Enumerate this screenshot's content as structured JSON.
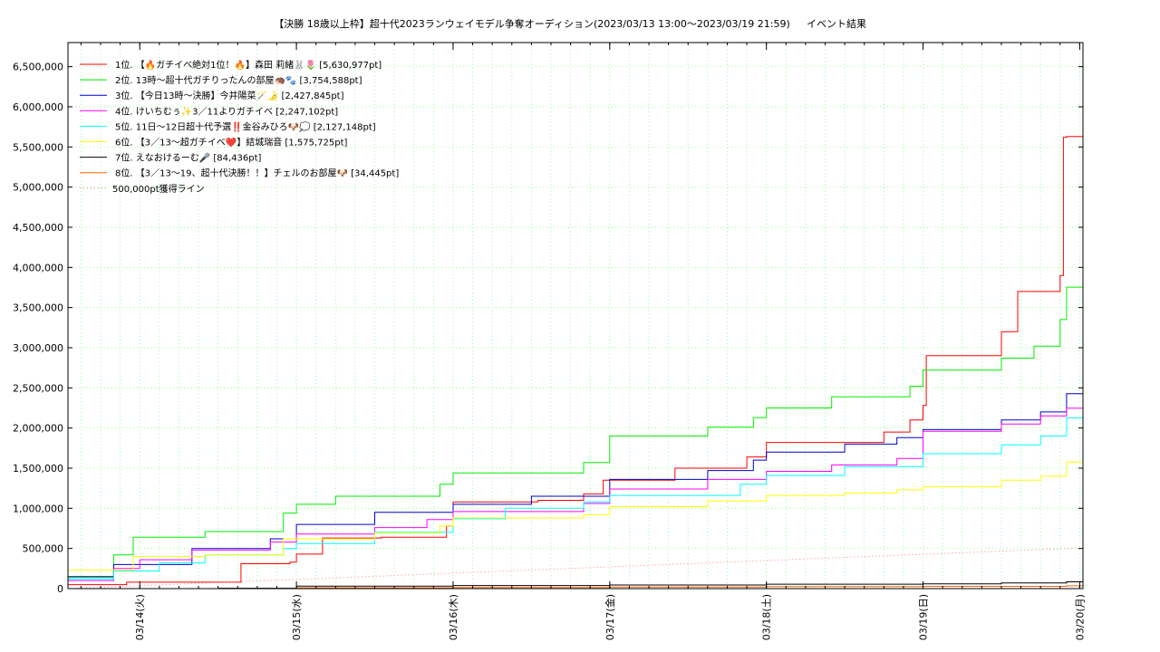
{
  "chart_data": {
    "type": "line",
    "title": "【決勝 18歳以上枠】超十代2023ランウェイモデル争奪オーディション(2023/03/13 13:00～2023/03/19 21:59)",
    "subtitle": "イベント結果",
    "xlabel": "",
    "ylabel": "",
    "x_range": [
      "2023-03-13 13:00",
      "2023-03-20 00:30"
    ],
    "ylim": [
      0,
      6800000
    ],
    "y_ticks": [
      0,
      500000,
      1000000,
      1500000,
      2000000,
      2500000,
      3000000,
      3500000,
      4000000,
      4500000,
      5000000,
      5500000,
      6000000,
      6500000
    ],
    "y_tick_labels": [
      "0",
      "500,000",
      "1,000,000",
      "1,500,000",
      "2,000,000",
      "2,500,000",
      "3,000,000",
      "3,500,000",
      "4,000,000",
      "4,500,000",
      "5,000,000",
      "5,500,000",
      "6,000,000",
      "6,500,000"
    ],
    "x_ticks": [
      "2023-03-14",
      "2023-03-15",
      "2023-03-16",
      "2023-03-17",
      "2023-03-18",
      "2023-03-19",
      "2023-03-20"
    ],
    "x_tick_labels": [
      "03/14(火)",
      "03/15(水)",
      "03/16(木)",
      "03/17(金)",
      "03/18(土)",
      "03/19(日)",
      "03/20(月)"
    ],
    "grid": true,
    "legend_position": "top-left",
    "series": [
      {
        "name": "1位. 【🔥ガチイベ絶対1位！🔥】森田 莉緒🐰🌷 [5,630,977pt]",
        "color": "#ff0000",
        "points": [
          [
            "2023-03-13 13:00",
            50000
          ],
          [
            "2023-03-13 22:00",
            80000
          ],
          [
            "2023-03-14 15:00",
            80000
          ],
          [
            "2023-03-14 15:30",
            310000
          ],
          [
            "2023-03-14 23:00",
            330000
          ],
          [
            "2023-03-15 00:00",
            430000
          ],
          [
            "2023-03-15 04:00",
            630000
          ],
          [
            "2023-03-15 10:00",
            630000
          ],
          [
            "2023-03-15 13:00",
            640000
          ],
          [
            "2023-03-15 23:00",
            780000
          ],
          [
            "2023-03-16 00:00",
            1080000
          ],
          [
            "2023-03-16 13:00",
            1100000
          ],
          [
            "2023-03-16 20:00",
            1180000
          ],
          [
            "2023-03-16 23:00",
            1350000
          ],
          [
            "2023-03-17 10:00",
            1500000
          ],
          [
            "2023-03-17 21:00",
            1640000
          ],
          [
            "2023-03-18 00:00",
            1820000
          ],
          [
            "2023-03-18 18:00",
            1950000
          ],
          [
            "2023-03-18 22:00",
            2100000
          ],
          [
            "2023-03-19 00:00",
            2280000
          ],
          [
            "2023-03-19 00:30",
            2900000
          ],
          [
            "2023-03-19 11:00",
            2900000
          ],
          [
            "2023-03-19 12:00",
            3200000
          ],
          [
            "2023-03-19 14:30",
            3700000
          ],
          [
            "2023-03-19 21:00",
            3900000
          ],
          [
            "2023-03-19 21:30",
            5620000
          ],
          [
            "2023-03-19 21:59",
            5630977
          ],
          [
            "2023-03-20 00:30",
            5630977
          ]
        ]
      },
      {
        "name": "2位. 13時～超十代ガチりったんの部屋🦔🐾 [3,754,588pt]",
        "color": "#00ee00",
        "points": [
          [
            "2023-03-13 13:00",
            140000
          ],
          [
            "2023-03-13 20:00",
            420000
          ],
          [
            "2023-03-13 23:00",
            640000
          ],
          [
            "2023-03-14 10:00",
            710000
          ],
          [
            "2023-03-14 22:00",
            940000
          ],
          [
            "2023-03-15 00:00",
            1050000
          ],
          [
            "2023-03-15 06:00",
            1150000
          ],
          [
            "2023-03-15 22:00",
            1300000
          ],
          [
            "2023-03-16 00:00",
            1440000
          ],
          [
            "2023-03-16 20:00",
            1570000
          ],
          [
            "2023-03-17 00:00",
            1900000
          ],
          [
            "2023-03-17 12:00",
            1900000
          ],
          [
            "2023-03-17 15:00",
            2010000
          ],
          [
            "2023-03-17 22:00",
            2130000
          ],
          [
            "2023-03-18 00:00",
            2250000
          ],
          [
            "2023-03-18 10:00",
            2390000
          ],
          [
            "2023-03-18 22:00",
            2520000
          ],
          [
            "2023-03-19 00:00",
            2720000
          ],
          [
            "2023-03-19 12:00",
            2870000
          ],
          [
            "2023-03-19 17:00",
            3020000
          ],
          [
            "2023-03-19 21:00",
            3350000
          ],
          [
            "2023-03-19 21:59",
            3754588
          ],
          [
            "2023-03-20 00:30",
            3754588
          ]
        ]
      },
      {
        "name": "3位. 【今日13時～決勝】今井陽菜🪄🌛 [2,427,845pt]",
        "color": "#0000cc",
        "points": [
          [
            "2023-03-13 13:00",
            150000
          ],
          [
            "2023-03-13 20:00",
            300000
          ],
          [
            "2023-03-14 08:00",
            500000
          ],
          [
            "2023-03-14 20:00",
            620000
          ],
          [
            "2023-03-15 00:00",
            800000
          ],
          [
            "2023-03-15 12:00",
            950000
          ],
          [
            "2023-03-16 00:00",
            1050000
          ],
          [
            "2023-03-16 12:00",
            1150000
          ],
          [
            "2023-03-17 00:00",
            1360000
          ],
          [
            "2023-03-17 15:00",
            1470000
          ],
          [
            "2023-03-17 22:00",
            1600000
          ],
          [
            "2023-03-18 00:00",
            1700000
          ],
          [
            "2023-03-18 12:00",
            1800000
          ],
          [
            "2023-03-18 20:00",
            1880000
          ],
          [
            "2023-03-19 00:00",
            1980000
          ],
          [
            "2023-03-19 12:00",
            2100000
          ],
          [
            "2023-03-19 18:00",
            2200000
          ],
          [
            "2023-03-19 21:59",
            2427845
          ],
          [
            "2023-03-20 00:30",
            2427845
          ]
        ]
      },
      {
        "name": "4位. けいちむぅ✨3／11よりガチイベ [2,247,102pt]",
        "color": "#ff00ff",
        "points": [
          [
            "2023-03-13 13:00",
            100000
          ],
          [
            "2023-03-13 20:00",
            250000
          ],
          [
            "2023-03-14 00:00",
            360000
          ],
          [
            "2023-03-14 08:00",
            480000
          ],
          [
            "2023-03-14 20:00",
            580000
          ],
          [
            "2023-03-15 00:00",
            680000
          ],
          [
            "2023-03-15 12:00",
            760000
          ],
          [
            "2023-03-15 20:00",
            860000
          ],
          [
            "2023-03-16 00:00",
            960000
          ],
          [
            "2023-03-16 20:00",
            1060000
          ],
          [
            "2023-03-17 00:00",
            1240000
          ],
          [
            "2023-03-17 15:00",
            1360000
          ],
          [
            "2023-03-18 00:00",
            1460000
          ],
          [
            "2023-03-18 10:00",
            1540000
          ],
          [
            "2023-03-18 20:00",
            1620000
          ],
          [
            "2023-03-19 00:00",
            1960000
          ],
          [
            "2023-03-19 12:00",
            2050000
          ],
          [
            "2023-03-19 18:00",
            2150000
          ],
          [
            "2023-03-19 21:59",
            2247102
          ],
          [
            "2023-03-20 00:30",
            2247102
          ]
        ]
      },
      {
        "name": "5位. 11日～12日超十代予選‼️金谷みひろ🐶💭 [2,127,148pt]",
        "color": "#00ffff",
        "points": [
          [
            "2023-03-13 13:00",
            120000
          ],
          [
            "2023-03-13 20:00",
            220000
          ],
          [
            "2023-03-14 03:00",
            320000
          ],
          [
            "2023-03-14 10:00",
            420000
          ],
          [
            "2023-03-14 22:00",
            500000
          ],
          [
            "2023-03-15 00:00",
            560000
          ],
          [
            "2023-03-15 12:00",
            700000
          ],
          [
            "2023-03-16 00:00",
            870000
          ],
          [
            "2023-03-16 08:00",
            1000000
          ],
          [
            "2023-03-16 20:00",
            1080000
          ],
          [
            "2023-03-17 00:00",
            1160000
          ],
          [
            "2023-03-17 20:00",
            1300000
          ],
          [
            "2023-03-18 00:00",
            1410000
          ],
          [
            "2023-03-18 12:00",
            1520000
          ],
          [
            "2023-03-19 00:00",
            1680000
          ],
          [
            "2023-03-19 12:00",
            1790000
          ],
          [
            "2023-03-19 18:00",
            1900000
          ],
          [
            "2023-03-19 21:59",
            2127148
          ],
          [
            "2023-03-20 00:30",
            2127148
          ]
        ]
      },
      {
        "name": "6位. 【3／13～超ガチイベ❤️】結城瑞音 [1,575,725pt]",
        "color": "#ffff00",
        "points": [
          [
            "2023-03-13 13:00",
            230000
          ],
          [
            "2023-03-13 23:00",
            400000
          ],
          [
            "2023-03-14 10:00",
            420000
          ],
          [
            "2023-03-14 22:00",
            620000
          ],
          [
            "2023-03-15 12:00",
            690000
          ],
          [
            "2023-03-15 22:00",
            780000
          ],
          [
            "2023-03-16 00:00",
            880000
          ],
          [
            "2023-03-16 20:00",
            920000
          ],
          [
            "2023-03-17 00:00",
            1020000
          ],
          [
            "2023-03-17 15:00",
            1090000
          ],
          [
            "2023-03-18 00:00",
            1160000
          ],
          [
            "2023-03-18 12:00",
            1190000
          ],
          [
            "2023-03-18 20:00",
            1230000
          ],
          [
            "2023-03-19 00:00",
            1270000
          ],
          [
            "2023-03-19 12:00",
            1350000
          ],
          [
            "2023-03-19 18:00",
            1400000
          ],
          [
            "2023-03-19 21:59",
            1575725
          ],
          [
            "2023-03-20 00:30",
            1575725
          ]
        ]
      },
      {
        "name": "7位. えなおけるーむ🎤 [84,436pt]",
        "color": "#000000",
        "points": [
          [
            "2023-03-13 13:00",
            0
          ],
          [
            "2023-03-14 12:00",
            5000
          ],
          [
            "2023-03-15 00:00",
            30000
          ],
          [
            "2023-03-16 00:00",
            38000
          ],
          [
            "2023-03-17 00:00",
            45000
          ],
          [
            "2023-03-18 00:00",
            55000
          ],
          [
            "2023-03-19 00:00",
            60000
          ],
          [
            "2023-03-19 12:00",
            70000
          ],
          [
            "2023-03-19 21:59",
            84436
          ],
          [
            "2023-03-20 00:30",
            84436
          ]
        ]
      },
      {
        "name": "8位. 【3／13～19、超十代決勝！！】チェルのお部屋🐶 [34,445pt]",
        "color": "#ff6600",
        "points": [
          [
            "2023-03-13 13:00",
            0
          ],
          [
            "2023-03-15 00:00",
            10000
          ],
          [
            "2023-03-16 00:00",
            15000
          ],
          [
            "2023-03-17 00:00",
            20000
          ],
          [
            "2023-03-18 00:00",
            25000
          ],
          [
            "2023-03-19 00:00",
            28000
          ],
          [
            "2023-03-19 21:59",
            34445
          ],
          [
            "2023-03-20 00:30",
            34445
          ]
        ]
      },
      {
        "name": "500,000pt獲得ライン",
        "color": "#ff8080",
        "dotted": true,
        "points": [
          [
            "2023-03-13 13:00",
            0
          ],
          [
            "2023-03-19 21:59",
            500000
          ],
          [
            "2023-03-20 00:30",
            500000
          ]
        ]
      }
    ]
  }
}
